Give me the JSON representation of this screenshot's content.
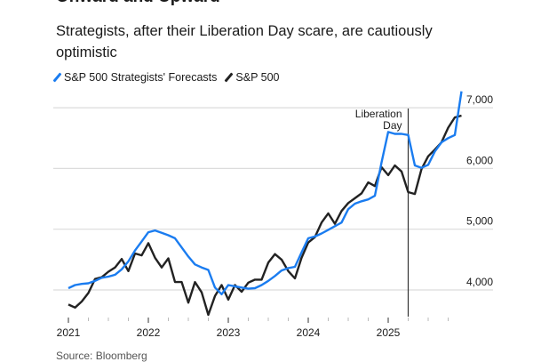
{
  "title": "Onward and Upward",
  "subtitle": "Strategists, after their Liberation Day scare, are cautiously optimistic",
  "source": "Source: Bloomberg",
  "chart_data": {
    "type": "line",
    "xlabel": "",
    "ylabel": "",
    "x_ticks": [
      "2021",
      "2022",
      "2023",
      "2024",
      "2025"
    ],
    "y_ticks": [
      "4,000",
      "5,000",
      "6,000",
      "7,000"
    ],
    "y_tick_values": [
      4000,
      5000,
      6000,
      7000
    ],
    "ylim": [
      3550,
      7300
    ],
    "xlim": [
      "2021-01",
      "2025-12"
    ],
    "grid": "horizontal",
    "legend": "top-left",
    "annotation": {
      "label_line1": "Liberation",
      "label_line2": "Day",
      "date": "2025-04"
    },
    "x": [
      "2021-01",
      "2021-02",
      "2021-03",
      "2021-04",
      "2021-05",
      "2021-06",
      "2021-07",
      "2021-08",
      "2021-09",
      "2021-10",
      "2021-11",
      "2021-12",
      "2022-01",
      "2022-02",
      "2022-03",
      "2022-04",
      "2022-05",
      "2022-06",
      "2022-07",
      "2022-08",
      "2022-09",
      "2022-10",
      "2022-11",
      "2022-12",
      "2023-01",
      "2023-02",
      "2023-03",
      "2023-04",
      "2023-05",
      "2023-06",
      "2023-07",
      "2023-08",
      "2023-09",
      "2023-10",
      "2023-11",
      "2023-12",
      "2024-01",
      "2024-02",
      "2024-03",
      "2024-04",
      "2024-05",
      "2024-06",
      "2024-07",
      "2024-08",
      "2024-09",
      "2024-10",
      "2024-11",
      "2024-12",
      "2025-01",
      "2025-02",
      "2025-03",
      "2025-04",
      "2025-05",
      "2025-06",
      "2025-07",
      "2025-08",
      "2025-09",
      "2025-10",
      "2025-11",
      "2025-12"
    ],
    "series": [
      {
        "name": "S&P 500 Strategists' Forecasts",
        "color": "#1a7cf0",
        "values": [
          4030,
          4080,
          4100,
          4110,
          4150,
          4200,
          4220,
          4250,
          4340,
          4470,
          4650,
          4800,
          4950,
          4980,
          4940,
          4900,
          4850,
          4700,
          4550,
          4420,
          4370,
          4330,
          4040,
          3930,
          4080,
          4060,
          4040,
          4020,
          4030,
          4080,
          4150,
          4230,
          4320,
          4360,
          4380,
          4620,
          4850,
          4880,
          4930,
          4990,
          5050,
          5110,
          5330,
          5420,
          5460,
          5490,
          5550,
          6100,
          6600,
          6570,
          6570,
          6550,
          6050,
          6010,
          6060,
          6280,
          6430,
          6500,
          6550,
          7270
        ]
      },
      {
        "name": "S&P 500",
        "color": "#222222",
        "values": [
          3760,
          3710,
          3810,
          3950,
          4180,
          4210,
          4300,
          4370,
          4510,
          4310,
          4600,
          4570,
          4770,
          4530,
          4370,
          4520,
          4130,
          4130,
          3790,
          4130,
          3960,
          3590,
          3900,
          4080,
          3840,
          4080,
          3970,
          4120,
          4170,
          4170,
          4450,
          4590,
          4500,
          4310,
          4190,
          4530,
          4780,
          4870,
          5110,
          5260,
          5090,
          5300,
          5430,
          5510,
          5590,
          5770,
          5710,
          6020,
          5890,
          6050,
          5950,
          5610,
          5580,
          5990,
          6200,
          6310,
          6430,
          6670,
          6840,
          6870
        ]
      }
    ]
  }
}
